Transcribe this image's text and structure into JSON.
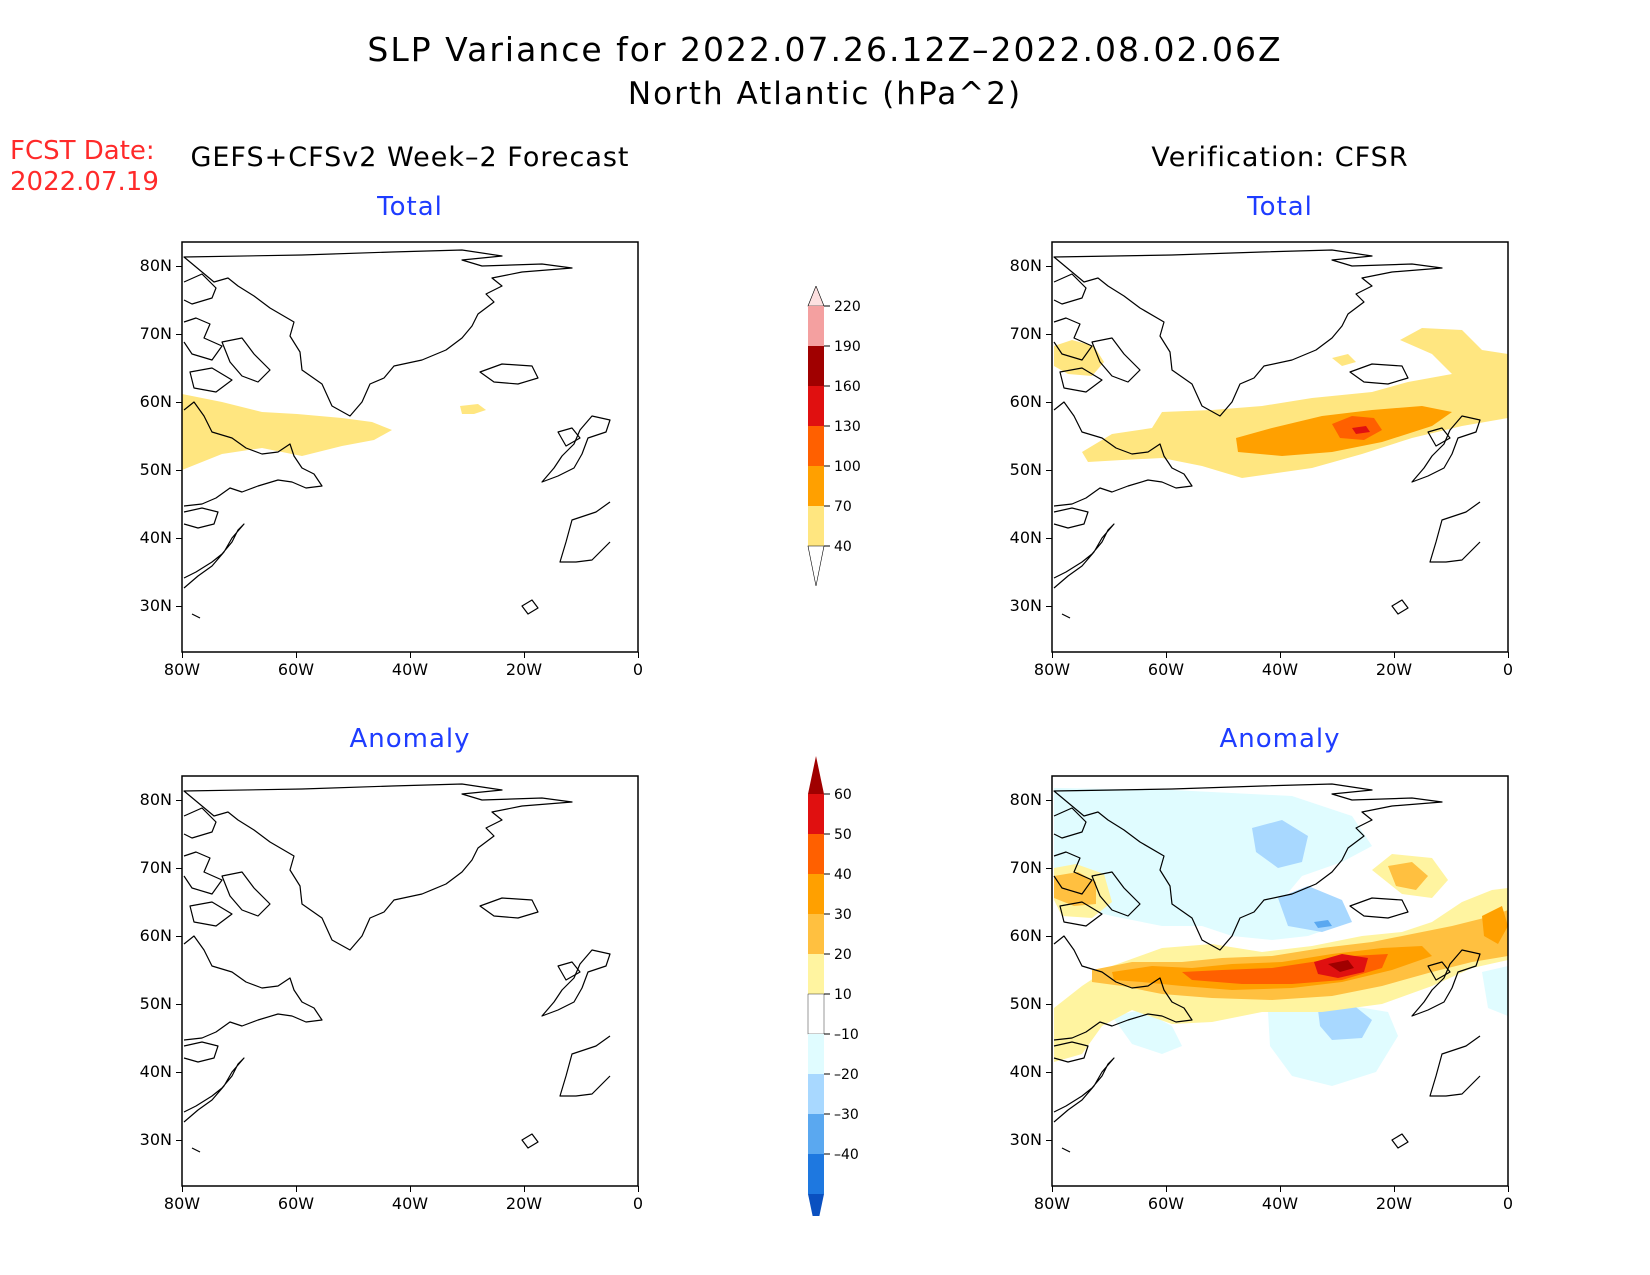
{
  "title": {
    "line1": "SLP Variance for 2022.07.26.12Z–2022.08.02.06Z",
    "line2": "North Atlantic (hPa^2)"
  },
  "forecast_date": {
    "label": "FCST Date:",
    "value": "2022.07.19"
  },
  "columns": {
    "left": "GEFS+CFSv2 Week–2 Forecast",
    "right": "Verification: CFSR"
  },
  "panels": {
    "forecast_total": "Total",
    "forecast_anomaly": "Anomaly",
    "verification_total": "Total",
    "verification_anomaly": "Anomaly"
  },
  "axes": {
    "lat_labels": [
      "80N",
      "70N",
      "60N",
      "50N",
      "40N",
      "30N"
    ],
    "lon_labels": [
      "80W",
      "60W",
      "40W",
      "20W",
      "0"
    ]
  },
  "colorbars": {
    "total": {
      "levels": [
        "40",
        "70",
        "100",
        "130",
        "160",
        "190",
        "220"
      ],
      "colors": [
        "#ffe680",
        "#ffa000",
        "#ff6000",
        "#e01010",
        "#a00000",
        "#f4a0a0",
        "#fde0e0"
      ]
    },
    "anomaly": {
      "levels": [
        "60",
        "50",
        "40",
        "30",
        "20",
        "10",
        "–10",
        "–20",
        "–30",
        "–40"
      ],
      "colors": [
        "#a00000",
        "#e01010",
        "#ff6000",
        "#ffa000",
        "#ffc040",
        "#fff4a0",
        "#ffffff",
        "#e0fcff",
        "#a8d8ff",
        "#5aa8f0",
        "#1e78e0",
        "#0a50c0"
      ]
    }
  },
  "map_data": {
    "region": "North Atlantic",
    "lon_range": [
      -80,
      0
    ],
    "lat_range": [
      25,
      85
    ],
    "units": "hPa^2",
    "forecast_total": "variance 40–70 band over Labrador Sea / Newfoundland, 50N–62N, 80W–42W",
    "verification_total": "40–100 band 48N–62N from 70W to 0, max 130–160 near 55N 27W; 40–70 patches over Baffin and 68N 20W",
    "verification_anomaly": "positive 10–60 band along 52N–58N, max near 55N 28W; negative –10 to –30 over Greenland, Denmark Strait and 45N 30W"
  }
}
